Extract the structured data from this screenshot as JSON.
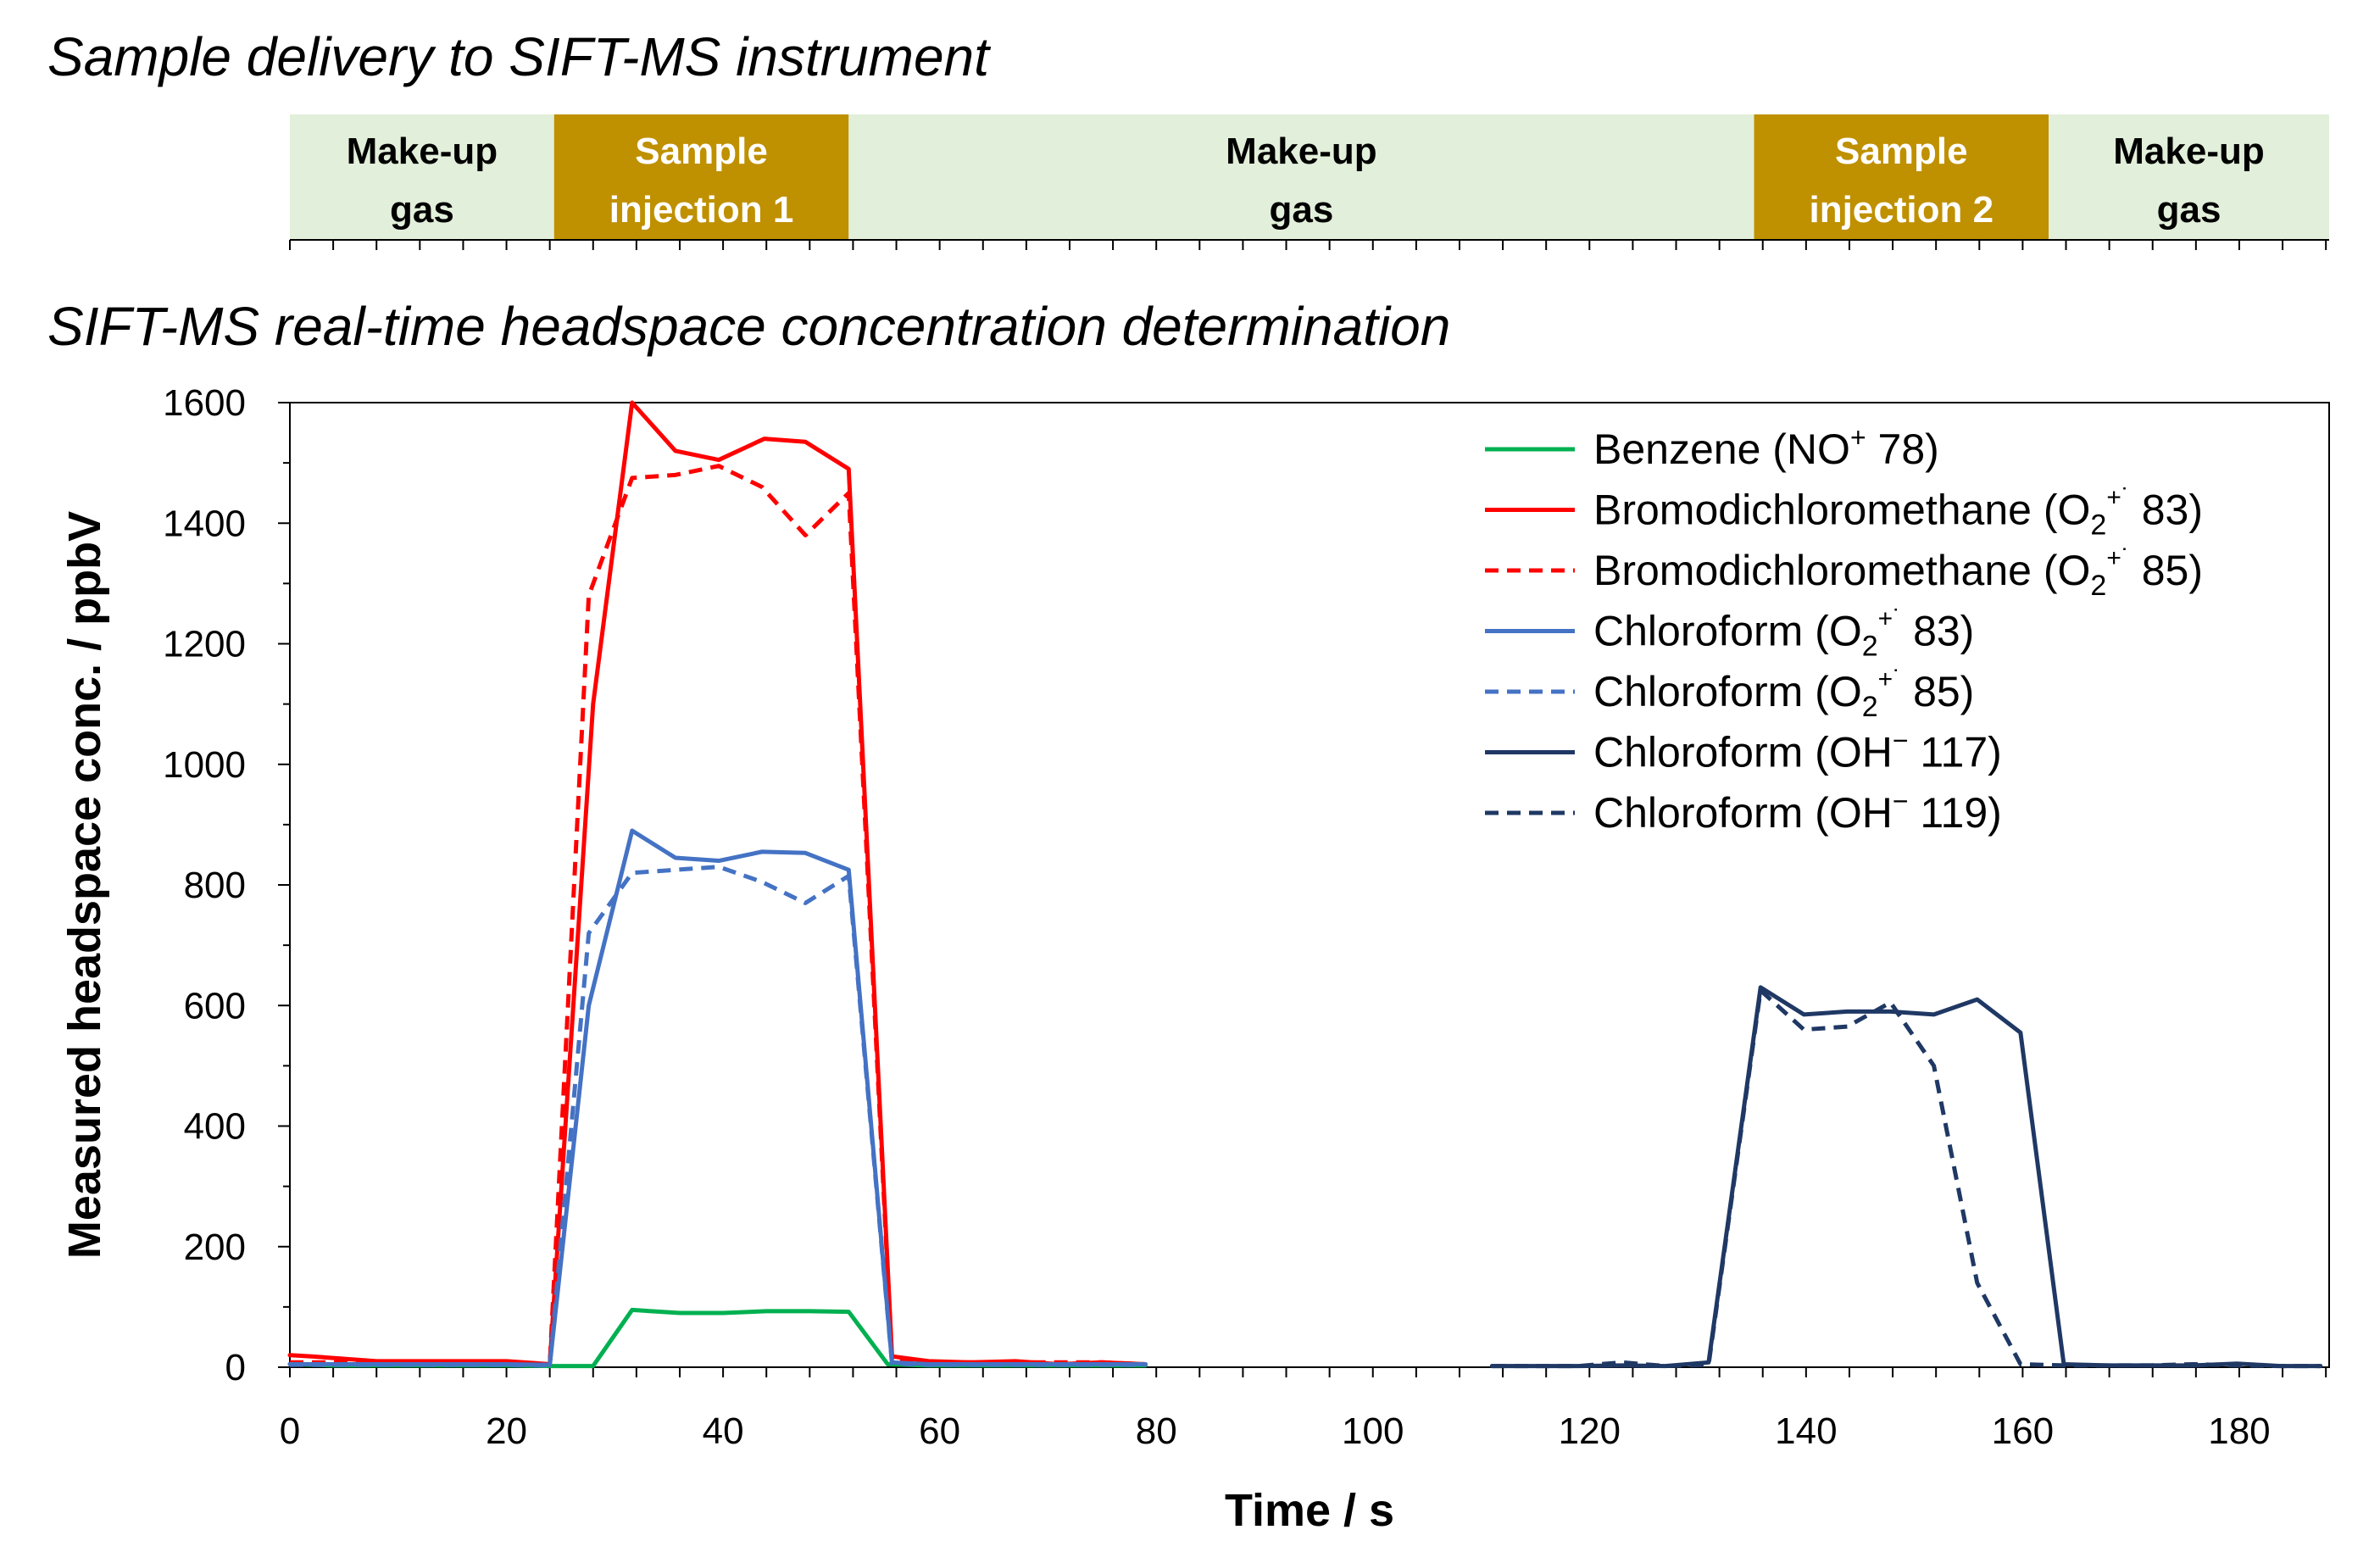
{
  "titles": {
    "delivery": "Sample delivery to SIFT-MS instrument",
    "chart": "SIFT-MS real-time headspace concentration determination"
  },
  "timeline": {
    "segments": [
      {
        "line1": "Make-up",
        "line2": "gas",
        "start": 0,
        "end": 24.4,
        "kind": "makeup"
      },
      {
        "line1": "Sample",
        "line2": "injection 1",
        "start": 24.4,
        "end": 51.6,
        "kind": "injection"
      },
      {
        "line1": "Make-up",
        "line2": "gas",
        "start": 51.6,
        "end": 135.2,
        "kind": "makeup"
      },
      {
        "line1": "Sample",
        "line2": "injection 2",
        "start": 135.2,
        "end": 162.4,
        "kind": "injection"
      },
      {
        "line1": "Make-up",
        "line2": "gas",
        "start": 162.4,
        "end": 188.3,
        "kind": "makeup"
      }
    ],
    "colors": {
      "makeup": "#e2efda",
      "injection": "#bf9000",
      "makeup_text": "#000000",
      "injection_text": "#ffffff"
    }
  },
  "chart_data": {
    "type": "line",
    "title": "SIFT-MS real-time headspace concentration determination",
    "xlabel": "Time / s",
    "ylabel": "Measured headspace conc. / ppbV",
    "xlim": [
      0,
      188.3
    ],
    "ylim": [
      0,
      1600
    ],
    "xticks": [
      0,
      20,
      40,
      60,
      80,
      100,
      120,
      140,
      160,
      180
    ],
    "yticks": [
      0,
      200,
      400,
      600,
      800,
      1000,
      1200,
      1400,
      1600
    ],
    "grid": false,
    "legend_position": "top-right",
    "series": [
      {
        "name": "Benzene (NO⁺ 78)",
        "color": "#00b050",
        "dash": false,
        "x": [
          0,
          4,
          8,
          12,
          16,
          20,
          24,
          28,
          31.6,
          36,
          40,
          44,
          48,
          51.6,
          55.2,
          59,
          63,
          67,
          71,
          75,
          79
        ],
        "y": [
          5,
          3,
          3,
          3,
          3,
          3,
          2,
          2,
          95,
          90,
          90,
          93,
          93,
          92,
          5,
          3,
          3,
          3,
          3,
          3,
          3
        ]
      },
      {
        "name": "Bromodichloromethane (O₂⁺˙ 83)",
        "color": "#ff0000",
        "dash": false,
        "x": [
          0,
          2,
          8,
          12,
          16,
          20,
          24,
          28,
          31.6,
          35.6,
          39.6,
          43.8,
          47.6,
          51.6,
          55.6,
          59,
          63,
          67,
          71,
          75,
          79
        ],
        "y": [
          20,
          18,
          10,
          10,
          10,
          10,
          5,
          1100,
          1600,
          1520,
          1505,
          1540,
          1535,
          1490,
          18,
          10,
          8,
          10,
          5,
          8,
          5
        ]
      },
      {
        "name": "Bromodichloromethane (O₂⁺˙ 85)",
        "color": "#ff0000",
        "dash": true,
        "x": [
          0,
          4,
          8,
          12,
          16,
          20,
          24,
          27.6,
          31.6,
          35.6,
          39.6,
          43.6,
          47.6,
          51.6,
          55.6,
          59,
          63,
          67,
          71,
          75,
          79
        ],
        "y": [
          8,
          8,
          8,
          8,
          8,
          8,
          5,
          1280,
          1475,
          1480,
          1495,
          1460,
          1380,
          1450,
          12,
          8,
          8,
          8,
          8,
          8,
          5
        ]
      },
      {
        "name": "Chloroform (O₂⁺˙ 83)",
        "color": "#4472c4",
        "dash": false,
        "x": [
          0,
          4,
          8,
          12,
          16,
          20,
          24,
          27.6,
          31.6,
          35.6,
          39.6,
          43.6,
          47.6,
          51.6,
          55.6,
          59,
          63,
          67,
          71,
          75,
          79
        ],
        "y": [
          5,
          5,
          5,
          5,
          5,
          5,
          4,
          600,
          890,
          845,
          840,
          855,
          853,
          825,
          8,
          5,
          5,
          5,
          5,
          5,
          5
        ]
      },
      {
        "name": "Chloroform (O₂⁺˙ 85)",
        "color": "#4472c4",
        "dash": true,
        "x": [
          0,
          4,
          8,
          12,
          16,
          20,
          24,
          27.6,
          31.6,
          35.6,
          39.6,
          43.6,
          47.6,
          51.6,
          55.6,
          59,
          63,
          67,
          71,
          75,
          79
        ],
        "y": [
          4,
          4,
          4,
          4,
          4,
          4,
          3,
          720,
          820,
          825,
          830,
          805,
          770,
          815,
          6,
          4,
          4,
          4,
          4,
          4,
          4
        ]
      },
      {
        "name": "Chloroform (OH⁻ 117)",
        "color": "#1f3864",
        "dash": false,
        "x": [
          111,
          115,
          119,
          123,
          127,
          131,
          135.8,
          139.8,
          143.8,
          147.8,
          151.8,
          155.8,
          159.8,
          163.8,
          167.8,
          171.8,
          175.8,
          179.8,
          183.8,
          187.5
        ],
        "y": [
          2,
          2,
          2,
          3,
          2,
          8,
          630,
          585,
          590,
          590,
          585,
          610,
          555,
          5,
          3,
          3,
          3,
          6,
          2,
          2
        ]
      },
      {
        "name": "Chloroform (OH⁻ 119)",
        "color": "#1f3864",
        "dash": true,
        "x": [
          111,
          115,
          119,
          123,
          127,
          131,
          135.8,
          139.8,
          143.8,
          147.8,
          151.8,
          155.8,
          159.8,
          163.8,
          167.8,
          171.8,
          175.8,
          179.8,
          183.8,
          187.5
        ],
        "y": [
          2,
          2,
          2,
          8,
          2,
          4,
          625,
          560,
          565,
          605,
          500,
          140,
          5,
          3,
          3,
          3,
          5,
          3,
          2,
          2
        ]
      }
    ],
    "legend": [
      {
        "base": "Benzene (NO",
        "sup": "+",
        "sub": "",
        "tail": " 78)",
        "color": "#00b050",
        "dash": false
      },
      {
        "base": "Bromodichloromethane (O",
        "sub": "2",
        "sup": "+˙",
        "tail": " 83)",
        "color": "#ff0000",
        "dash": false
      },
      {
        "base": "Bromodichloromethane (O",
        "sub": "2",
        "sup": "+˙",
        "tail": " 85)",
        "color": "#ff0000",
        "dash": true
      },
      {
        "base": "Chloroform (O",
        "sub": "2",
        "sup": "+˙",
        "tail": " 83)",
        "color": "#4472c4",
        "dash": false
      },
      {
        "base": "Chloroform (O",
        "sub": "2",
        "sup": "+˙",
        "tail": " 85)",
        "color": "#4472c4",
        "dash": true
      },
      {
        "base": "Chloroform (OH",
        "sub": "",
        "sup": "−",
        "tail": " 117)",
        "color": "#1f3864",
        "dash": false
      },
      {
        "base": "Chloroform (OH",
        "sub": "",
        "sup": "−",
        "tail": " 119)",
        "color": "#1f3864",
        "dash": true
      }
    ]
  }
}
